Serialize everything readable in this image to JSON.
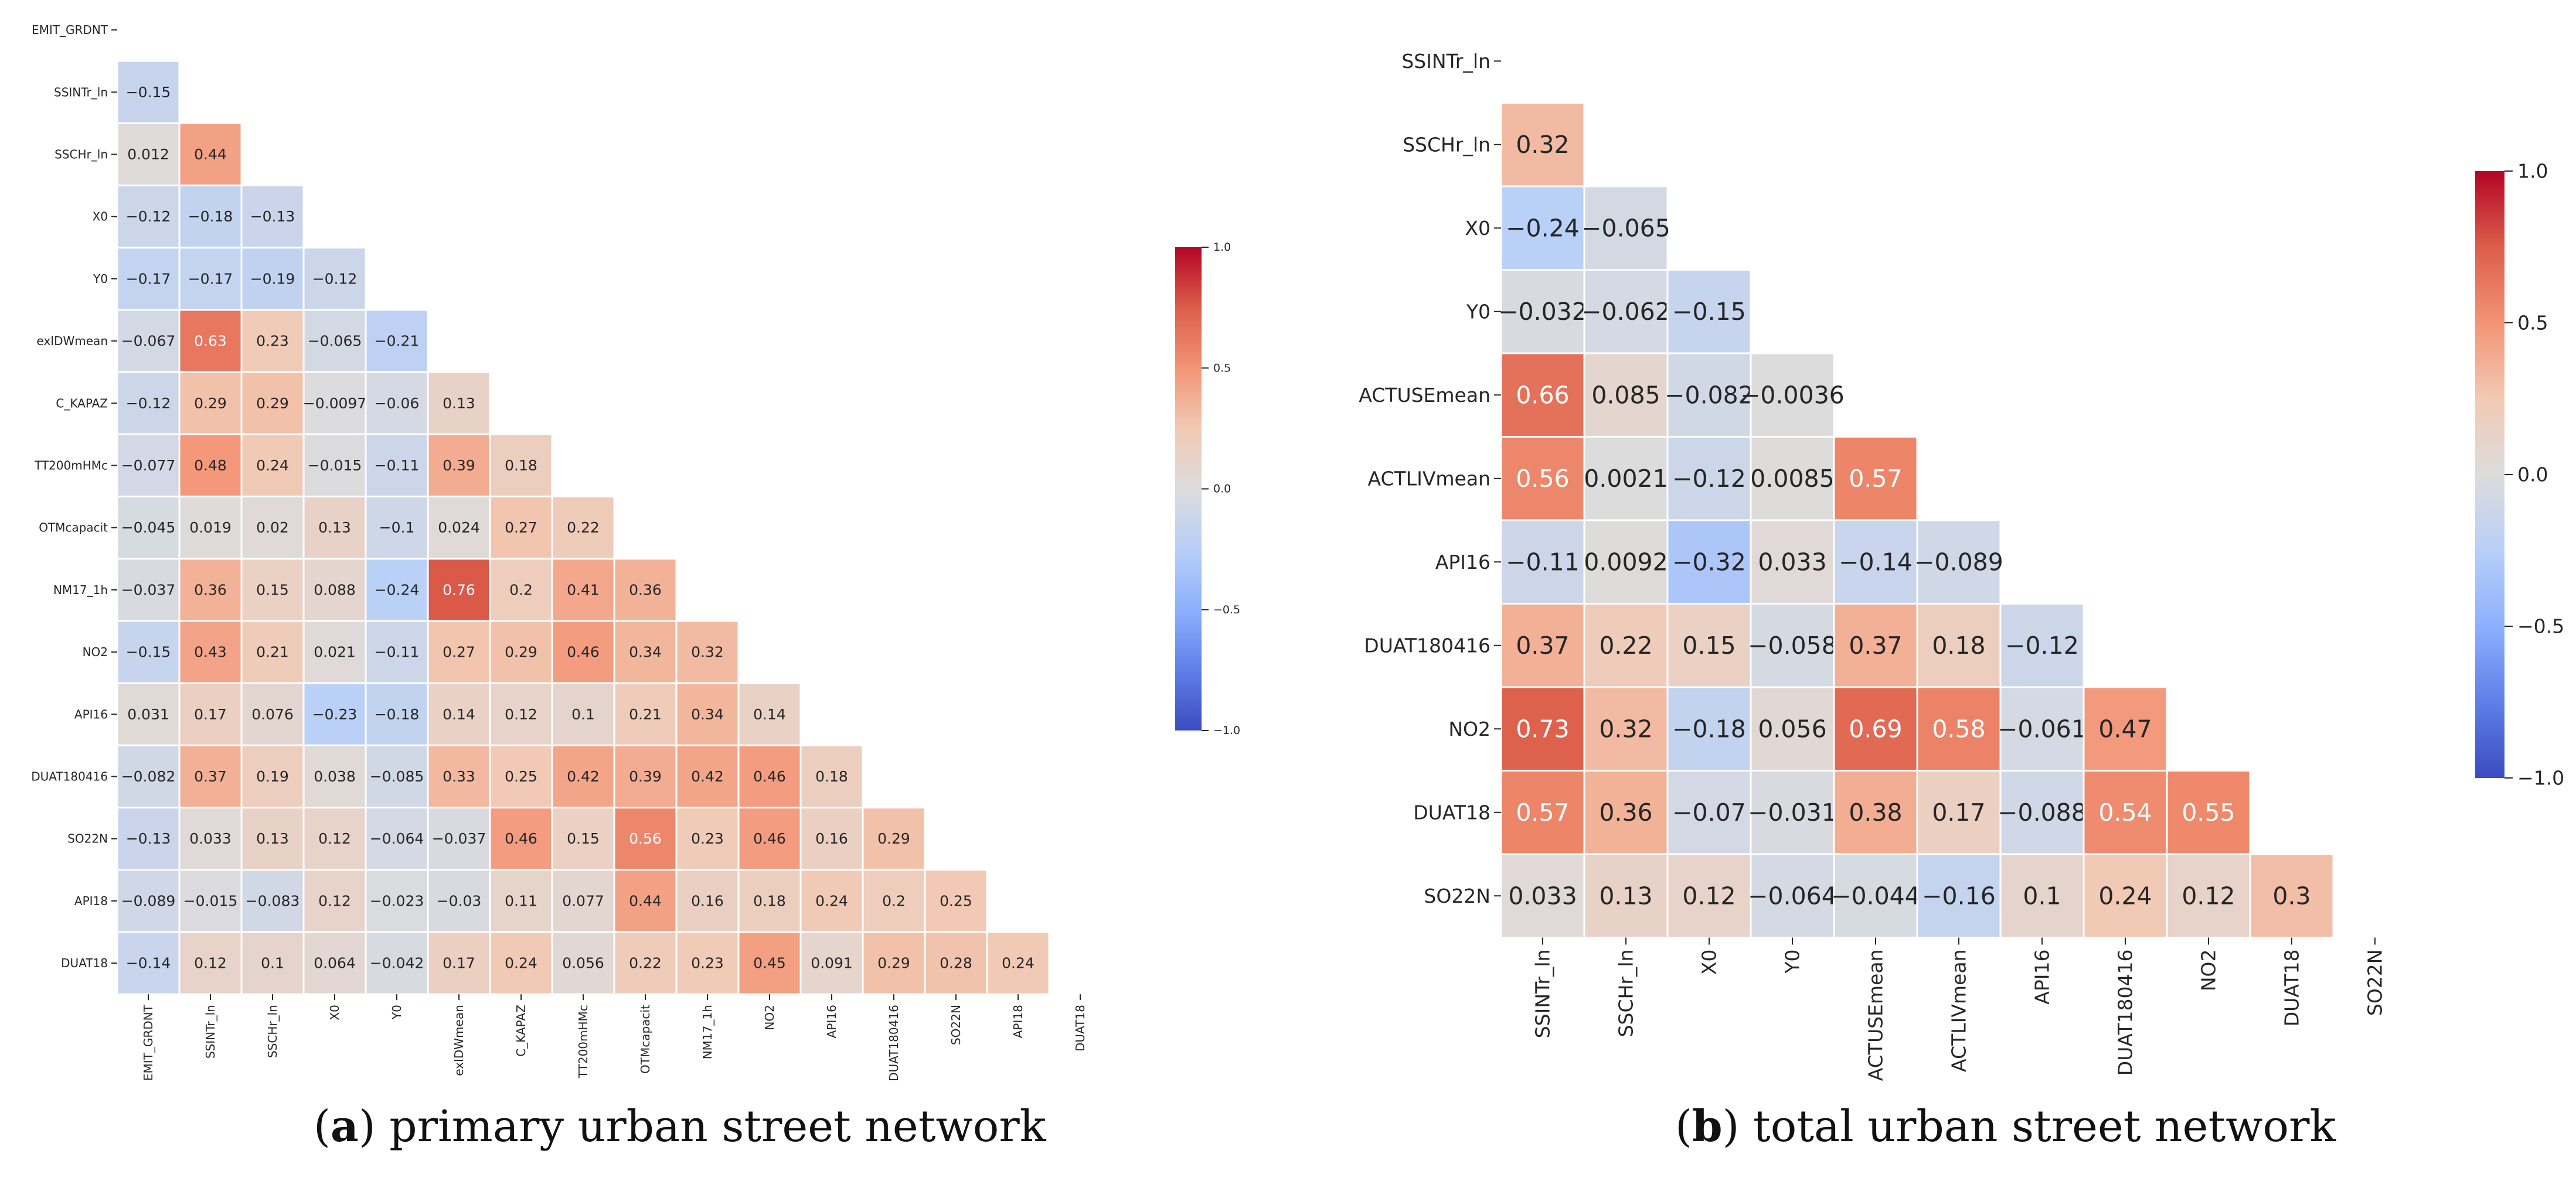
{
  "chart_data": [
    {
      "type": "heatmap",
      "title": "",
      "caption": {
        "letter": "a",
        "text": "primary urban street network"
      },
      "variables": [
        "EMIT_GRDNT",
        "SSINTr_ln",
        "SSCHr_ln",
        "X0",
        "Y0",
        "exIDWmean",
        "C_KAPAZ",
        "TT200mHMc",
        "OTMcapacit",
        "NM17_1h",
        "NO2",
        "API16",
        "DUAT180416",
        "SO22N",
        "API18",
        "DUAT18"
      ],
      "lower_triangle": [
        [],
        [
          -0.15
        ],
        [
          0.012,
          0.44
        ],
        [
          -0.12,
          -0.18,
          -0.13
        ],
        [
          -0.17,
          -0.17,
          -0.19,
          -0.12
        ],
        [
          -0.067,
          0.63,
          0.23,
          -0.065,
          -0.21
        ],
        [
          -0.12,
          0.29,
          0.29,
          -0.0097,
          -0.06,
          0.13
        ],
        [
          -0.077,
          0.48,
          0.24,
          -0.015,
          -0.11,
          0.39,
          0.18
        ],
        [
          -0.045,
          0.019,
          0.02,
          0.13,
          -0.1,
          0.024,
          0.27,
          0.22
        ],
        [
          -0.037,
          0.36,
          0.15,
          0.088,
          -0.24,
          0.76,
          0.2,
          0.41,
          0.36
        ],
        [
          -0.15,
          0.43,
          0.21,
          0.021,
          -0.11,
          0.27,
          0.29,
          0.46,
          0.34,
          0.32
        ],
        [
          0.031,
          0.17,
          0.076,
          -0.23,
          -0.18,
          0.14,
          0.12,
          0.1,
          0.21,
          0.34,
          0.14
        ],
        [
          -0.082,
          0.37,
          0.19,
          0.038,
          -0.085,
          0.33,
          0.25,
          0.42,
          0.39,
          0.42,
          0.46,
          0.18
        ],
        [
          -0.13,
          0.033,
          0.13,
          0.12,
          -0.064,
          -0.037,
          0.46,
          0.15,
          0.56,
          0.23,
          0.46,
          0.16,
          0.29
        ],
        [
          -0.089,
          -0.015,
          -0.083,
          0.12,
          -0.023,
          -0.03,
          0.11,
          0.077,
          0.44,
          0.16,
          0.18,
          0.24,
          0.2,
          0.25
        ],
        [
          -0.14,
          0.12,
          0.1,
          0.064,
          -0.042,
          0.17,
          0.24,
          0.056,
          0.22,
          0.23,
          0.45,
          0.091,
          0.29,
          0.28,
          0.24
        ]
      ],
      "colorbar": {
        "min": -1.0,
        "max": 1.0,
        "ticks": [
          "1.0",
          "0.5",
          "0.0",
          "−0.5",
          "−1.0"
        ],
        "colormap": "coolwarm"
      }
    },
    {
      "type": "heatmap",
      "title": "",
      "caption": {
        "letter": "b",
        "text": "total urban street network"
      },
      "variables": [
        "SSINTr_ln",
        "SSCHr_ln",
        "X0",
        "Y0",
        "ACTUSEmean",
        "ACTLIVmean",
        "API16",
        "DUAT180416",
        "NO2",
        "DUAT18",
        "SO22N"
      ],
      "lower_triangle": [
        [],
        [
          0.32
        ],
        [
          -0.24,
          -0.065
        ],
        [
          -0.032,
          -0.062,
          -0.15
        ],
        [
          0.66,
          0.085,
          -0.082,
          -0.0036
        ],
        [
          0.56,
          0.0021,
          -0.12,
          0.0085,
          0.57
        ],
        [
          -0.11,
          0.0092,
          -0.32,
          0.033,
          -0.14,
          -0.089
        ],
        [
          0.37,
          0.22,
          0.15,
          -0.058,
          0.37,
          0.18,
          -0.12
        ],
        [
          0.73,
          0.32,
          -0.18,
          0.056,
          0.69,
          0.58,
          -0.061,
          0.47
        ],
        [
          0.57,
          0.36,
          -0.07,
          -0.031,
          0.38,
          0.17,
          -0.088,
          0.54,
          0.55
        ],
        [
          0.033,
          0.13,
          0.12,
          -0.064,
          -0.044,
          -0.16,
          0.1,
          0.24,
          0.12,
          0.3
        ]
      ],
      "colorbar": {
        "min": -1.0,
        "max": 1.0,
        "ticks": [
          "1.0",
          "0.5",
          "0.0",
          "−0.5",
          "−1.0"
        ],
        "colormap": "coolwarm"
      }
    }
  ]
}
